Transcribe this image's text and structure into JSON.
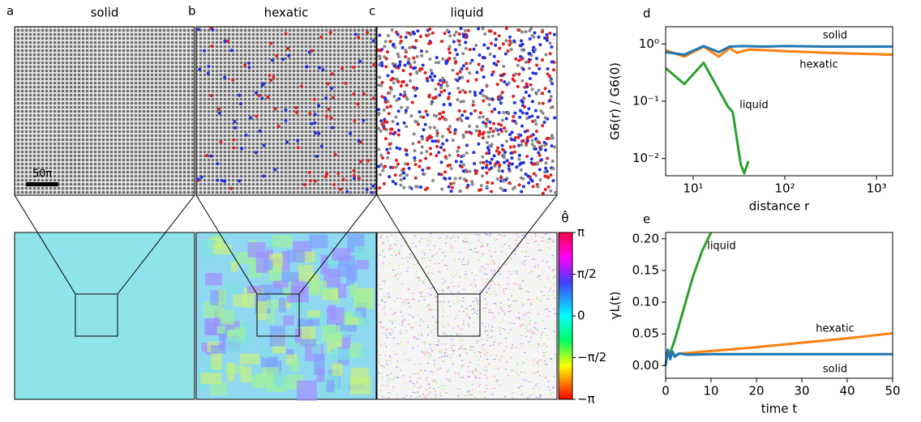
{
  "panels": [
    {
      "label": "a",
      "title": "solid"
    },
    {
      "label": "b",
      "title": "hexatic"
    },
    {
      "label": "c",
      "title": "liquid"
    }
  ],
  "scale_bar": "50π",
  "colorbar": {
    "label": "θ̂",
    "lim": [
      -3.1416,
      3.1416
    ],
    "ticks": [
      {
        "value": -3.1416,
        "label": "−π"
      },
      {
        "value": -1.5708,
        "label": "−π/2"
      },
      0,
      {
        "value": 1.5708,
        "label": "π/2"
      },
      {
        "value": 3.1416,
        "label": "π"
      }
    ]
  },
  "chart_data": [
    {
      "type": "line",
      "panel_label": "d",
      "xlabel": "distance r",
      "ylabel": "G6(r) / G6(0)",
      "xlog": true,
      "ylog": true,
      "xlim": [
        5,
        1500
      ],
      "ylim": [
        0.005,
        2
      ],
      "xticks": [
        {
          "value": 10,
          "label": "10¹"
        },
        {
          "value": 100,
          "label": "10²"
        },
        {
          "value": 1000,
          "label": "10³"
        }
      ],
      "yticks": [
        {
          "value": 0.01,
          "label": "10⁻²"
        },
        {
          "value": 0.1,
          "label": "10⁻¹"
        },
        {
          "value": 1,
          "label": "10⁰"
        }
      ],
      "annotations": [
        "solid",
        "hexatic",
        "liquid"
      ],
      "series": [
        {
          "name": "liquid",
          "color": "#2ca02c",
          "x": [
            5,
            8,
            13,
            24,
            27,
            33,
            36,
            40
          ],
          "values": [
            0.38,
            0.2,
            0.47,
            0.08,
            0.065,
            0.008,
            0.0055,
            0.009
          ]
        },
        {
          "name": "hexatic",
          "color": "#ff7f0e",
          "x": [
            5,
            8,
            13,
            19,
            25,
            30,
            40,
            60,
            100,
            300,
            1500
          ],
          "values": [
            0.78,
            0.6,
            0.9,
            0.6,
            0.85,
            0.7,
            0.8,
            0.78,
            0.75,
            0.7,
            0.65
          ]
        },
        {
          "name": "solid",
          "color": "#1f77b4",
          "x": [
            5,
            8,
            13,
            19,
            25,
            35,
            60,
            100,
            300,
            1500
          ],
          "values": [
            0.72,
            0.65,
            0.92,
            0.72,
            0.9,
            0.92,
            0.9,
            0.92,
            0.9,
            0.9
          ]
        }
      ]
    },
    {
      "type": "line",
      "panel_label": "e",
      "xlabel": "time t",
      "ylabel": "γL(t)",
      "xlim": [
        0,
        50
      ],
      "ylim": [
        -0.02,
        0.21
      ],
      "xticks": [
        0,
        10,
        20,
        30,
        40,
        50
      ],
      "yticks": [
        {
          "value": 0,
          "label": "0.00"
        },
        {
          "value": 0.05,
          "label": "0.05"
        },
        {
          "value": 0.1,
          "label": "0.10"
        },
        {
          "value": 0.15,
          "label": "0.15"
        },
        {
          "value": 0.2,
          "label": "0.20"
        }
      ],
      "annotations": [
        "liquid",
        "hexatic",
        "solid"
      ],
      "series": [
        {
          "name": "liquid",
          "color": "#2ca02c",
          "x": [
            0,
            1,
            2,
            4,
            6,
            8,
            10
          ],
          "values": [
            0.02,
            0.02,
            0.04,
            0.09,
            0.14,
            0.18,
            0.21
          ]
        },
        {
          "name": "hexatic",
          "color": "#ff7f0e",
          "x": [
            0,
            0.5,
            1,
            1.5,
            2,
            3,
            5,
            10,
            20,
            30,
            40,
            50
          ],
          "values": [
            0.0,
            0.025,
            0.012,
            0.022,
            0.015,
            0.019,
            0.02,
            0.023,
            0.029,
            0.036,
            0.043,
            0.051
          ]
        },
        {
          "name": "solid",
          "color": "#1f77b4",
          "x": [
            0,
            0.5,
            1,
            1.5,
            2,
            3,
            5,
            10,
            20,
            30,
            40,
            50
          ],
          "values": [
            0.0,
            0.025,
            0.01,
            0.022,
            0.014,
            0.019,
            0.017,
            0.018,
            0.018,
            0.018,
            0.018,
            0.018
          ]
        }
      ]
    }
  ]
}
